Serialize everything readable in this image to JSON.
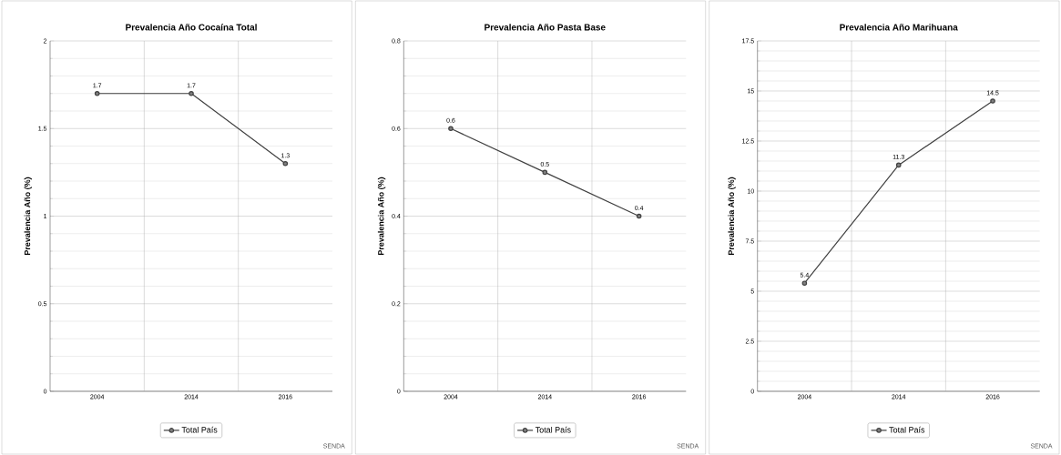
{
  "chart_data": [
    {
      "type": "line",
      "title": "Prevalencia Año Cocaína Total",
      "ylabel": "Prevalencia Año (%)",
      "categories": [
        "2004",
        "2014",
        "2016"
      ],
      "series": [
        {
          "name": "Total País",
          "color": "#404040",
          "values": [
            1.7,
            1.7,
            1.3
          ]
        }
      ],
      "ylim": [
        0,
        2
      ],
      "yticks": [
        0,
        0.5,
        1,
        1.5,
        2
      ],
      "grid": true,
      "legend": "bottom",
      "marker": "circle",
      "data_labels": true,
      "annotations": [
        "SENDA"
      ]
    },
    {
      "type": "line",
      "title": "Prevalencia Año Pasta Base",
      "ylabel": "Prevalencia Año (%)",
      "categories": [
        "2004",
        "2014",
        "2016"
      ],
      "series": [
        {
          "name": "Total País",
          "color": "#404040",
          "values": [
            0.6,
            0.5,
            0.4
          ]
        }
      ],
      "ylim": [
        0,
        0.8
      ],
      "yticks": [
        0,
        0.2,
        0.4,
        0.6,
        0.8
      ],
      "grid": true,
      "legend": "bottom",
      "marker": "circle",
      "data_labels": true,
      "annotations": [
        "SENDA"
      ]
    },
    {
      "type": "line",
      "title": "Prevalencia Año Marihuana",
      "ylabel": "Prevalencia Año (%)",
      "categories": [
        "2004",
        "2014",
        "2016"
      ],
      "series": [
        {
          "name": "Total País",
          "color": "#404040",
          "values": [
            5.4,
            11.3,
            14.5
          ]
        }
      ],
      "ylim": [
        0,
        17.5
      ],
      "yticks": [
        0,
        2.5,
        5,
        7.5,
        10,
        12.5,
        15,
        17.5
      ],
      "grid": true,
      "legend": "bottom",
      "marker": "circle",
      "data_labels": true,
      "annotations": [
        "SENDA"
      ]
    }
  ]
}
